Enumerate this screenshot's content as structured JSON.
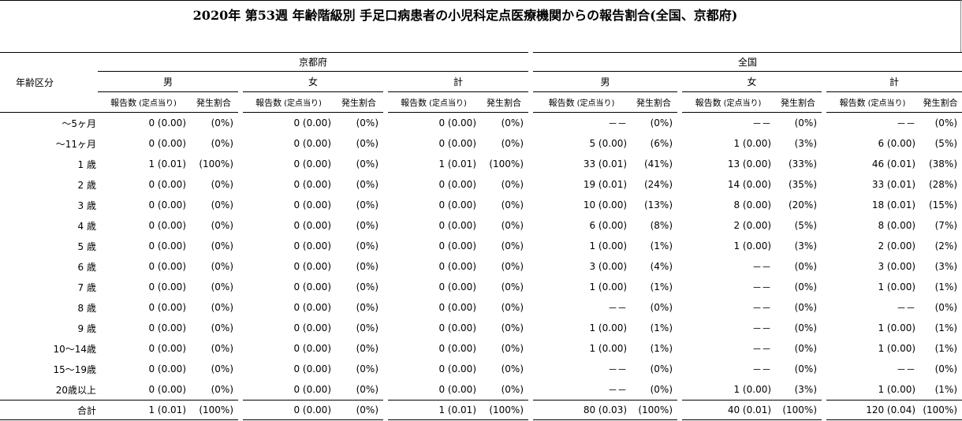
{
  "title": "2020年 第53週 年齢階級別 手足口病患者の小児科定点医療機関からの報告割合(全国、京都府)",
  "header": {
    "age_label": "年齢区分",
    "regions": [
      "京都府",
      "全国"
    ],
    "sexes": [
      "男",
      "女",
      "計"
    ],
    "count_label": "報告数",
    "per_label": "(定点当り)",
    "ratio_label": "発生割合"
  },
  "rows": [
    {
      "age": "～5ヶ月",
      "cells": [
        [
          "0 (0.00)",
          "(0%)"
        ],
        [
          "0 (0.00)",
          "(0%)"
        ],
        [
          "0 (0.00)",
          "(0%)"
        ],
        [
          "－－",
          "(0%)"
        ],
        [
          "－－",
          "(0%)"
        ],
        [
          "－－",
          "(0%)"
        ]
      ]
    },
    {
      "age": "～11ヶ月",
      "cells": [
        [
          "0 (0.00)",
          "(0%)"
        ],
        [
          "0 (0.00)",
          "(0%)"
        ],
        [
          "0 (0.00)",
          "(0%)"
        ],
        [
          "5 (0.00)",
          "(6%)"
        ],
        [
          "1 (0.00)",
          "(3%)"
        ],
        [
          "6 (0.00)",
          "(5%)"
        ]
      ]
    },
    {
      "age": "1 歳",
      "cells": [
        [
          "1 (0.01)",
          "(100%)"
        ],
        [
          "0 (0.00)",
          "(0%)"
        ],
        [
          "1 (0.01)",
          "(100%)"
        ],
        [
          "33 (0.01)",
          "(41%)"
        ],
        [
          "13 (0.00)",
          "(33%)"
        ],
        [
          "46 (0.01)",
          "(38%)"
        ]
      ]
    },
    {
      "age": "2 歳",
      "cells": [
        [
          "0 (0.00)",
          "(0%)"
        ],
        [
          "0 (0.00)",
          "(0%)"
        ],
        [
          "0 (0.00)",
          "(0%)"
        ],
        [
          "19 (0.01)",
          "(24%)"
        ],
        [
          "14 (0.00)",
          "(35%)"
        ],
        [
          "33 (0.01)",
          "(28%)"
        ]
      ]
    },
    {
      "age": "3 歳",
      "cells": [
        [
          "0 (0.00)",
          "(0%)"
        ],
        [
          "0 (0.00)",
          "(0%)"
        ],
        [
          "0 (0.00)",
          "(0%)"
        ],
        [
          "10 (0.00)",
          "(13%)"
        ],
        [
          "8 (0.00)",
          "(20%)"
        ],
        [
          "18 (0.01)",
          "(15%)"
        ]
      ]
    },
    {
      "age": "4 歳",
      "cells": [
        [
          "0 (0.00)",
          "(0%)"
        ],
        [
          "0 (0.00)",
          "(0%)"
        ],
        [
          "0 (0.00)",
          "(0%)"
        ],
        [
          "6 (0.00)",
          "(8%)"
        ],
        [
          "2 (0.00)",
          "(5%)"
        ],
        [
          "8 (0.00)",
          "(7%)"
        ]
      ]
    },
    {
      "age": "5 歳",
      "cells": [
        [
          "0 (0.00)",
          "(0%)"
        ],
        [
          "0 (0.00)",
          "(0%)"
        ],
        [
          "0 (0.00)",
          "(0%)"
        ],
        [
          "1 (0.00)",
          "(1%)"
        ],
        [
          "1 (0.00)",
          "(3%)"
        ],
        [
          "2 (0.00)",
          "(2%)"
        ]
      ]
    },
    {
      "age": "6 歳",
      "cells": [
        [
          "0 (0.00)",
          "(0%)"
        ],
        [
          "0 (0.00)",
          "(0%)"
        ],
        [
          "0 (0.00)",
          "(0%)"
        ],
        [
          "3 (0.00)",
          "(4%)"
        ],
        [
          "－－",
          "(0%)"
        ],
        [
          "3 (0.00)",
          "(3%)"
        ]
      ]
    },
    {
      "age": "7 歳",
      "cells": [
        [
          "0 (0.00)",
          "(0%)"
        ],
        [
          "0 (0.00)",
          "(0%)"
        ],
        [
          "0 (0.00)",
          "(0%)"
        ],
        [
          "1 (0.00)",
          "(1%)"
        ],
        [
          "－－",
          "(0%)"
        ],
        [
          "1 (0.00)",
          "(1%)"
        ]
      ]
    },
    {
      "age": "8 歳",
      "cells": [
        [
          "0 (0.00)",
          "(0%)"
        ],
        [
          "0 (0.00)",
          "(0%)"
        ],
        [
          "0 (0.00)",
          "(0%)"
        ],
        [
          "－－",
          "(0%)"
        ],
        [
          "－－",
          "(0%)"
        ],
        [
          "－－",
          "(0%)"
        ]
      ]
    },
    {
      "age": "9 歳",
      "cells": [
        [
          "0 (0.00)",
          "(0%)"
        ],
        [
          "0 (0.00)",
          "(0%)"
        ],
        [
          "0 (0.00)",
          "(0%)"
        ],
        [
          "1 (0.00)",
          "(1%)"
        ],
        [
          "－－",
          "(0%)"
        ],
        [
          "1 (0.00)",
          "(1%)"
        ]
      ]
    },
    {
      "age": "10～14歳",
      "cells": [
        [
          "0 (0.00)",
          "(0%)"
        ],
        [
          "0 (0.00)",
          "(0%)"
        ],
        [
          "0 (0.00)",
          "(0%)"
        ],
        [
          "1 (0.00)",
          "(1%)"
        ],
        [
          "－－",
          "(0%)"
        ],
        [
          "1 (0.00)",
          "(1%)"
        ]
      ]
    },
    {
      "age": "15～19歳",
      "cells": [
        [
          "0 (0.00)",
          "(0%)"
        ],
        [
          "0 (0.00)",
          "(0%)"
        ],
        [
          "0 (0.00)",
          "(0%)"
        ],
        [
          "－－",
          "(0%)"
        ],
        [
          "－－",
          "(0%)"
        ],
        [
          "－－",
          "(0%)"
        ]
      ]
    },
    {
      "age": "20歳以上",
      "cells": [
        [
          "0 (0.00)",
          "(0%)"
        ],
        [
          "0 (0.00)",
          "(0%)"
        ],
        [
          "0 (0.00)",
          "(0%)"
        ],
        [
          "－－",
          "(0%)"
        ],
        [
          "1 (0.00)",
          "(3%)"
        ],
        [
          "1 (0.00)",
          "(1%)"
        ]
      ]
    }
  ],
  "total": {
    "age": "合計",
    "cells": [
      [
        "1 (0.01)",
        "(100%)"
      ],
      [
        "0 (0.00)",
        "(0%)"
      ],
      [
        "1 (0.01)",
        "(100%)"
      ],
      [
        "80 (0.03)",
        "(100%)"
      ],
      [
        "40 (0.01)",
        "(100%)"
      ],
      [
        "120 (0.04)",
        "(100%)"
      ]
    ]
  }
}
